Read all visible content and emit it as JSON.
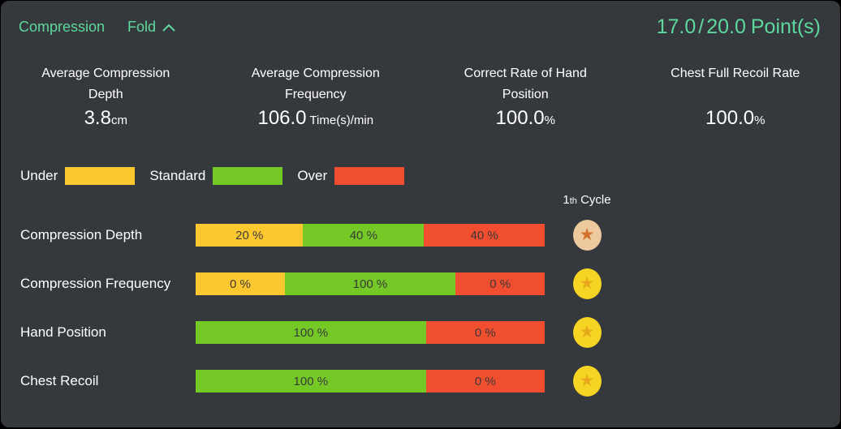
{
  "colors": {
    "panel_bg": "#35383c",
    "accent": "#5ed99d",
    "text": "#ffffff",
    "under": "#fdc72f",
    "standard": "#74c926",
    "over": "#f14e30"
  },
  "header": {
    "title": "Compression",
    "fold_label": "Fold",
    "score": {
      "current": "17.0",
      "slash": "/",
      "total": "20.0",
      "unit": "Point(s)"
    }
  },
  "stats": [
    {
      "label": "Average Compression Depth",
      "value": "3.8",
      "unit": "cm"
    },
    {
      "label": "Average Compression Frequency",
      "value": "106.0",
      "unit": "Time(s)/min"
    },
    {
      "label": "Correct Rate of Hand Position",
      "value": "100.0",
      "unit": "%"
    },
    {
      "label": "Chest Full Recoil Rate",
      "value": "100.0",
      "unit": "%"
    }
  ],
  "legend": [
    {
      "label": "Under",
      "color_key": "under"
    },
    {
      "label": "Standard",
      "color_key": "standard"
    },
    {
      "label": "Over",
      "color_key": "over"
    }
  ],
  "cycle_header": {
    "number": "1",
    "suffix": "th",
    "label": "Cycle"
  },
  "medal_styles": {
    "bronze": {
      "bg": "#ecca9d",
      "star": "#d2702d"
    },
    "gold": {
      "bg": "#f6d423",
      "star": "#e8a81c"
    }
  },
  "chart_data": {
    "type": "bar",
    "note": "horizontal stacked distribution bars, widths rendered proportional to value+100",
    "categories": [
      "Under",
      "Standard",
      "Over"
    ],
    "rows": [
      {
        "label": "Compression Depth",
        "segments": [
          {
            "category": "Under",
            "value": 20,
            "text": "20 %",
            "color_key": "under"
          },
          {
            "category": "Standard",
            "value": 40,
            "text": "40 %",
            "color_key": "standard"
          },
          {
            "category": "Over",
            "value": 40,
            "text": "40 %",
            "color_key": "over"
          }
        ],
        "medal": "bronze"
      },
      {
        "label": "Compression Frequency",
        "segments": [
          {
            "category": "Under",
            "value": 0,
            "text": "0 %",
            "color_key": "under"
          },
          {
            "category": "Standard",
            "value": 100,
            "text": "100 %",
            "color_key": "standard"
          },
          {
            "category": "Over",
            "value": 0,
            "text": "0 %",
            "color_key": "over"
          }
        ],
        "medal": "gold"
      },
      {
        "label": "Hand Position",
        "segments": [
          {
            "category": "Standard",
            "value": 100,
            "text": "100 %",
            "color_key": "standard"
          },
          {
            "category": "Over",
            "value": 0,
            "text": "0 %",
            "color_key": "over"
          }
        ],
        "medal": "gold"
      },
      {
        "label": "Chest Recoil",
        "segments": [
          {
            "category": "Standard",
            "value": 100,
            "text": "100 %",
            "color_key": "standard"
          },
          {
            "category": "Over",
            "value": 0,
            "text": "0 %",
            "color_key": "over"
          }
        ],
        "medal": "gold"
      }
    ]
  }
}
